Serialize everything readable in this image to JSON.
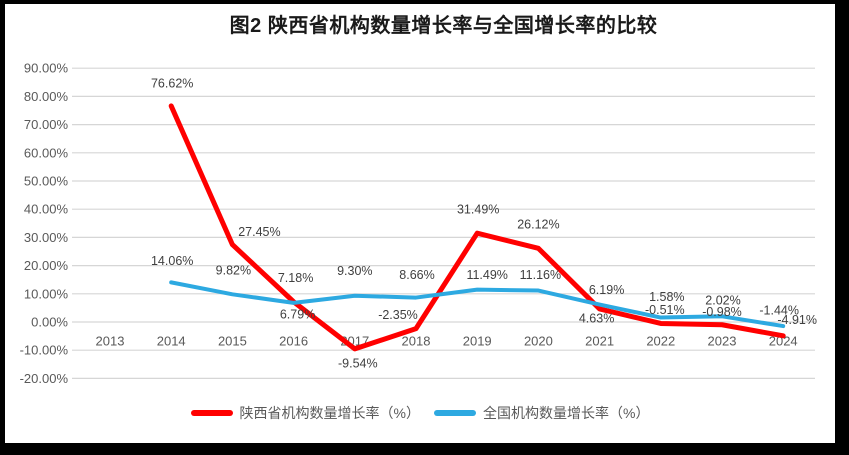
{
  "title": "图2 陕西省机构数量增长率与全国增长率的比较",
  "panel": {
    "background": "#FFFFFF",
    "surround": "#000000"
  },
  "style_colors": {
    "axis_text": "#595959",
    "data_label_text": "#404040",
    "gridline": "#D6D6D6",
    "legend_text": "#595959",
    "title_text": "#1A1A1A"
  },
  "chart_data": {
    "type": "line",
    "title": "图2 陕西省机构数量增长率与全国增长率的比较",
    "categories": [
      "2013",
      "2014",
      "2015",
      "2016",
      "2017",
      "2018",
      "2019",
      "2020",
      "2021",
      "2022",
      "2023",
      "2024"
    ],
    "series": [
      {
        "name": "陕西省机构数量增长率（%）",
        "color": "#FF0000",
        "values": [
          null,
          76.62,
          27.45,
          7.18,
          -9.54,
          -2.35,
          31.49,
          26.12,
          4.63,
          -0.51,
          -0.98,
          -4.91
        ],
        "labels": [
          null,
          "76.62%",
          "27.45%",
          "7.18%",
          "-9.54%",
          "-2.35%",
          "31.49%",
          "26.12%",
          "4.63%",
          "-0.51%",
          "-0.98%",
          "-4.91%"
        ],
        "label_offsets": [
          null,
          [
            1,
            -23
          ],
          [
            27,
            -13
          ],
          [
            2,
            -24
          ],
          [
            3,
            14
          ],
          [
            -18,
            -14
          ],
          [
            1,
            -24
          ],
          [
            0,
            -24
          ],
          [
            -3,
            9
          ],
          [
            4,
            -14
          ],
          [
            0,
            -13
          ],
          [
            14,
            -16
          ]
        ]
      },
      {
        "name": "全国机构数量增长率（%）",
        "color": "#2DA9E1",
        "values": [
          null,
          14.06,
          9.82,
          6.79,
          9.3,
          8.66,
          11.49,
          11.16,
          6.19,
          1.58,
          2.02,
          -1.44
        ],
        "labels": [
          null,
          "14.06%",
          "9.82%",
          "6.79%",
          "9.30%",
          "8.66%",
          "11.49%",
          "11.16%",
          "6.19%",
          "1.58%",
          "2.02%",
          "-1.44%"
        ],
        "label_offsets": [
          null,
          [
            1,
            -22
          ],
          [
            1,
            -24
          ],
          [
            4,
            11
          ],
          [
            0,
            -25
          ],
          [
            1,
            -23
          ],
          [
            10,
            -15
          ],
          [
            2,
            -16
          ],
          [
            7,
            -15
          ],
          [
            6,
            -21
          ],
          [
            1,
            -16
          ],
          [
            -4,
            -16
          ]
        ]
      }
    ],
    "ylim": [
      -20,
      90
    ],
    "ytick_values": [
      -20,
      -10,
      0,
      10,
      20,
      30,
      40,
      50,
      60,
      70,
      80,
      90
    ],
    "ytick_labels": [
      "-20.00%",
      "-10.00%",
      "0.00%",
      "10.00%",
      "20.00%",
      "30.00%",
      "40.00%",
      "50.00%",
      "60.00%",
      "70.00%",
      "80.00%",
      "90.00%"
    ],
    "xlabel": "",
    "ylabel": "",
    "grid": true,
    "legend_position": "bottom"
  }
}
